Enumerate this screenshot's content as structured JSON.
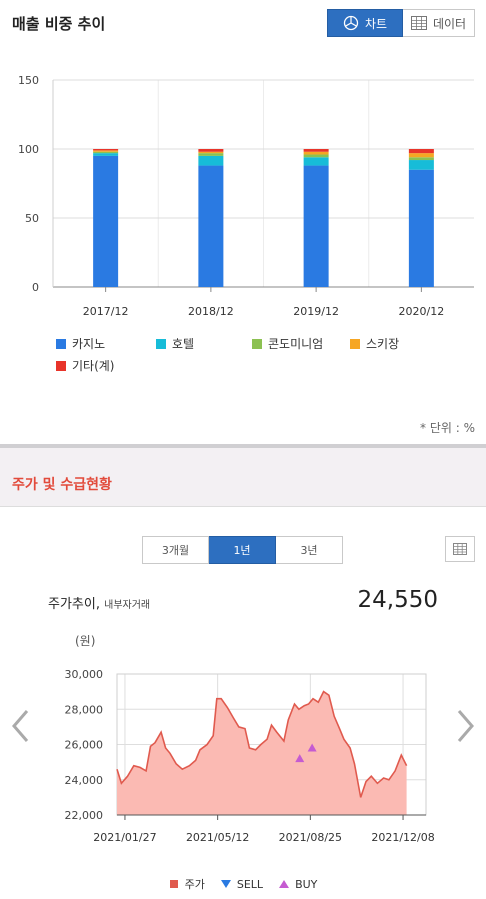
{
  "section1": {
    "title": "매출 비중 추이",
    "toggle": {
      "chart_label": "차트",
      "data_label": "데이터"
    },
    "unit_note": "* 단위 : %"
  },
  "section2": {
    "title": "주가 및 수급현황",
    "periods": [
      "3개월",
      "1년",
      "3년"
    ],
    "active_period": "1년",
    "stock_label": "주가추이,",
    "stock_sublabel": "내부자거래",
    "price": "24,550",
    "price_unit": "(원)"
  },
  "chart_data": [
    {
      "type": "bar",
      "stacked": true,
      "categories": [
        "2017/12",
        "2018/12",
        "2019/12",
        "2020/12"
      ],
      "series": [
        {
          "name": "카지노",
          "color": "#2a7ae2",
          "values": [
            95,
            88,
            88,
            85
          ]
        },
        {
          "name": "호텔",
          "color": "#17bcd8",
          "values": [
            2,
            7,
            6,
            7
          ]
        },
        {
          "name": "콘도미니엄",
          "color": "#8cc152",
          "values": [
            1,
            2,
            2,
            2
          ]
        },
        {
          "name": "스키장",
          "color": "#f6a623",
          "values": [
            1,
            1,
            2,
            3
          ]
        },
        {
          "name": "기타(계)",
          "color": "#e8342a",
          "values": [
            1,
            2,
            2,
            3
          ]
        }
      ],
      "ylim": [
        0,
        150
      ],
      "yticks": [
        "0",
        "50",
        "100",
        "150"
      ],
      "grid": true,
      "legend": "bottom"
    },
    {
      "type": "area",
      "xlim": [
        "2021-01-18",
        "2022-01-03"
      ],
      "xticks": [
        {
          "date": "2021-01-27",
          "label": "2021/01/27"
        },
        {
          "date": "2021-05-12",
          "label": "2021/05/12"
        },
        {
          "date": "2021-08-25",
          "label": "2021/08/25"
        },
        {
          "date": "2021-12-08",
          "label": "2021/12/08"
        }
      ],
      "ylim": [
        22000,
        30000
      ],
      "yticks": [
        "22,000",
        "24,000",
        "26,000",
        "28,000",
        "30,000"
      ],
      "series": [
        {
          "name": "주가",
          "color": "#e05a4e",
          "fill": "#fbbab3",
          "points": [
            [
              "2021-01-18",
              24600
            ],
            [
              "2021-01-23",
              23800
            ],
            [
              "2021-01-30",
              24200
            ],
            [
              "2021-02-06",
              24800
            ],
            [
              "2021-02-13",
              24700
            ],
            [
              "2021-02-20",
              24500
            ],
            [
              "2021-02-25",
              25900
            ],
            [
              "2021-03-02",
              26100
            ],
            [
              "2021-03-09",
              26700
            ],
            [
              "2021-03-14",
              25800
            ],
            [
              "2021-03-19",
              25500
            ],
            [
              "2021-03-26",
              24900
            ],
            [
              "2021-04-02",
              24600
            ],
            [
              "2021-04-10",
              24800
            ],
            [
              "2021-04-17",
              25100
            ],
            [
              "2021-04-22",
              25700
            ],
            [
              "2021-04-30",
              26000
            ],
            [
              "2021-05-07",
              26500
            ],
            [
              "2021-05-11",
              28600
            ],
            [
              "2021-05-16",
              28600
            ],
            [
              "2021-05-23",
              28100
            ],
            [
              "2021-05-30",
              27500
            ],
            [
              "2021-06-05",
              27000
            ],
            [
              "2021-06-12",
              26900
            ],
            [
              "2021-06-17",
              25800
            ],
            [
              "2021-06-24",
              25700
            ],
            [
              "2021-06-30",
              26000
            ],
            [
              "2021-07-07",
              26300
            ],
            [
              "2021-07-12",
              27100
            ],
            [
              "2021-07-18",
              26700
            ],
            [
              "2021-07-26",
              26200
            ],
            [
              "2021-07-31",
              27400
            ],
            [
              "2021-08-07",
              28300
            ],
            [
              "2021-08-12",
              28000
            ],
            [
              "2021-08-18",
              28200
            ],
            [
              "2021-08-23",
              28300
            ],
            [
              "2021-08-28",
              28600
            ],
            [
              "2021-09-03",
              28400
            ],
            [
              "2021-09-09",
              29000
            ],
            [
              "2021-09-15",
              28800
            ],
            [
              "2021-09-21",
              27600
            ],
            [
              "2021-09-27",
              26900
            ],
            [
              "2021-10-02",
              26300
            ],
            [
              "2021-10-09",
              25800
            ],
            [
              "2021-10-14",
              24900
            ],
            [
              "2021-10-21",
              23000
            ],
            [
              "2021-10-27",
              23900
            ],
            [
              "2021-11-02",
              24200
            ],
            [
              "2021-11-09",
              23800
            ],
            [
              "2021-11-16",
              24100
            ],
            [
              "2021-11-22",
              24000
            ],
            [
              "2021-11-29",
              24500
            ],
            [
              "2021-12-06",
              25400
            ],
            [
              "2021-12-12",
              24800
            ]
          ]
        }
      ],
      "markers": [
        {
          "name": "BUY",
          "date": "2021-08-13",
          "value": 25200,
          "color": "#c55bd1"
        },
        {
          "name": "BUY",
          "date": "2021-08-27",
          "value": 25800,
          "color": "#c55bd1"
        }
      ],
      "legend": [
        {
          "name": "주가",
          "color": "#e05a4e",
          "shape": "square"
        },
        {
          "name": "SELL",
          "color": "#2a7ae2",
          "shape": "triangle-down"
        },
        {
          "name": "BUY",
          "color": "#c55bd1",
          "shape": "triangle-up"
        }
      ],
      "grid": true
    }
  ]
}
